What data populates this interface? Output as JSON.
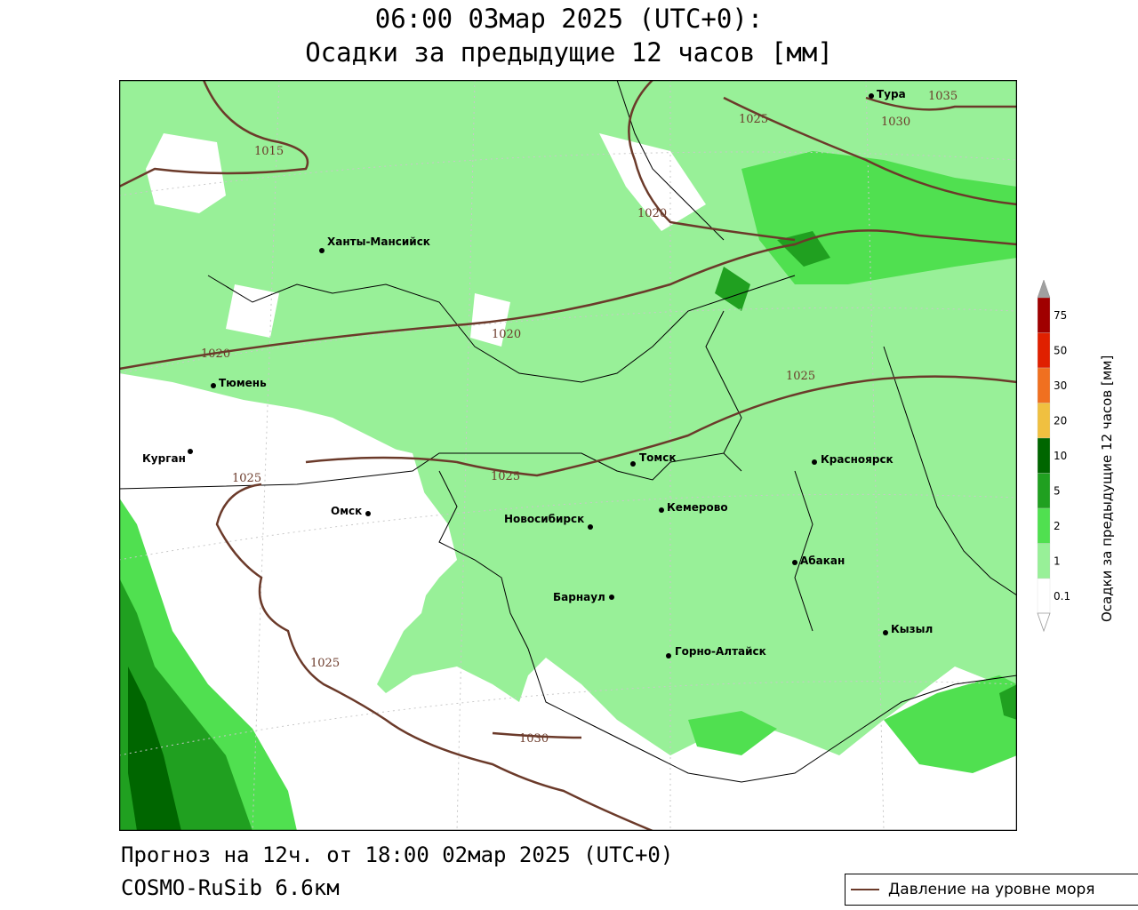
{
  "title_line1": "06:00 03мар 2025 (UTC+0):",
  "title_line2": "Осадки за предыдущие 12 часов [мм]",
  "footer_line1": "Прогноз на 12ч. от 18:00 02мар 2025 (UTC+0)",
  "footer_line2": "COSMO-RuSib 6.6км",
  "pressure_legend_label": "Давление на уровне моря",
  "colorbar_label": "Осадки за предыдущие 12 часов [мм]",
  "colorbar": {
    "ticks": [
      "75",
      "50",
      "30",
      "20",
      "10",
      "5",
      "2",
      "1",
      "0.1"
    ],
    "colors": [
      "#a0a0a0",
      "#a00000",
      "#e02000",
      "#f07020",
      "#f0c040",
      "#006600",
      "#20a020",
      "#50e050",
      "#98f098",
      "#ffffff"
    ]
  },
  "cities": [
    {
      "name": "Тура"
    },
    {
      "name": "Ханты-Мансийск"
    },
    {
      "name": "Тюмень"
    },
    {
      "name": "Курган"
    },
    {
      "name": "Омск"
    },
    {
      "name": "Томск"
    },
    {
      "name": "Красноярск"
    },
    {
      "name": "Кемерово"
    },
    {
      "name": "Новосибирск"
    },
    {
      "name": "Абакан"
    },
    {
      "name": "Барнаул"
    },
    {
      "name": "Кызыл"
    },
    {
      "name": "Горно-Алтайск"
    }
  ],
  "isobars": [
    "1015",
    "1020",
    "1020",
    "1020",
    "1025",
    "1025",
    "1025",
    "1025",
    "1030",
    "1030",
    "1035"
  ],
  "colors": {
    "isobar": "#6b3a2a",
    "precip_light": "#98f098",
    "precip_1": "#50e050",
    "precip_2": "#20a020",
    "precip_5": "#006600"
  }
}
